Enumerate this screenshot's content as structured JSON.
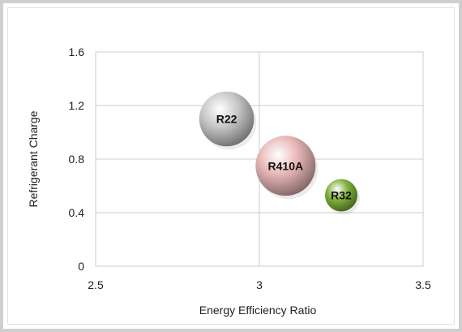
{
  "chart_data": {
    "type": "bubble",
    "title": "",
    "xlabel": "Energy Efficiency Ratio",
    "ylabel": "Refrigerant Charge",
    "xlim": [
      2.5,
      3.5
    ],
    "ylim": [
      0,
      1.6
    ],
    "xticks": [
      "2.5",
      "3",
      "3.5"
    ],
    "yticks": [
      "0",
      "0.4",
      "0.8",
      "1.2",
      "1.6"
    ],
    "grid": true,
    "legend": "none",
    "points": [
      {
        "label": "R22",
        "x": 2.9,
        "y": 1.1,
        "size": 1.0,
        "color": "#c8c8c8"
      },
      {
        "label": "R410A",
        "x": 3.08,
        "y": 0.75,
        "size": 1.2,
        "color": "#e8b7b7"
      },
      {
        "label": "R32",
        "x": 3.25,
        "y": 0.53,
        "size": 0.35,
        "color": "#7fb13a"
      }
    ]
  }
}
